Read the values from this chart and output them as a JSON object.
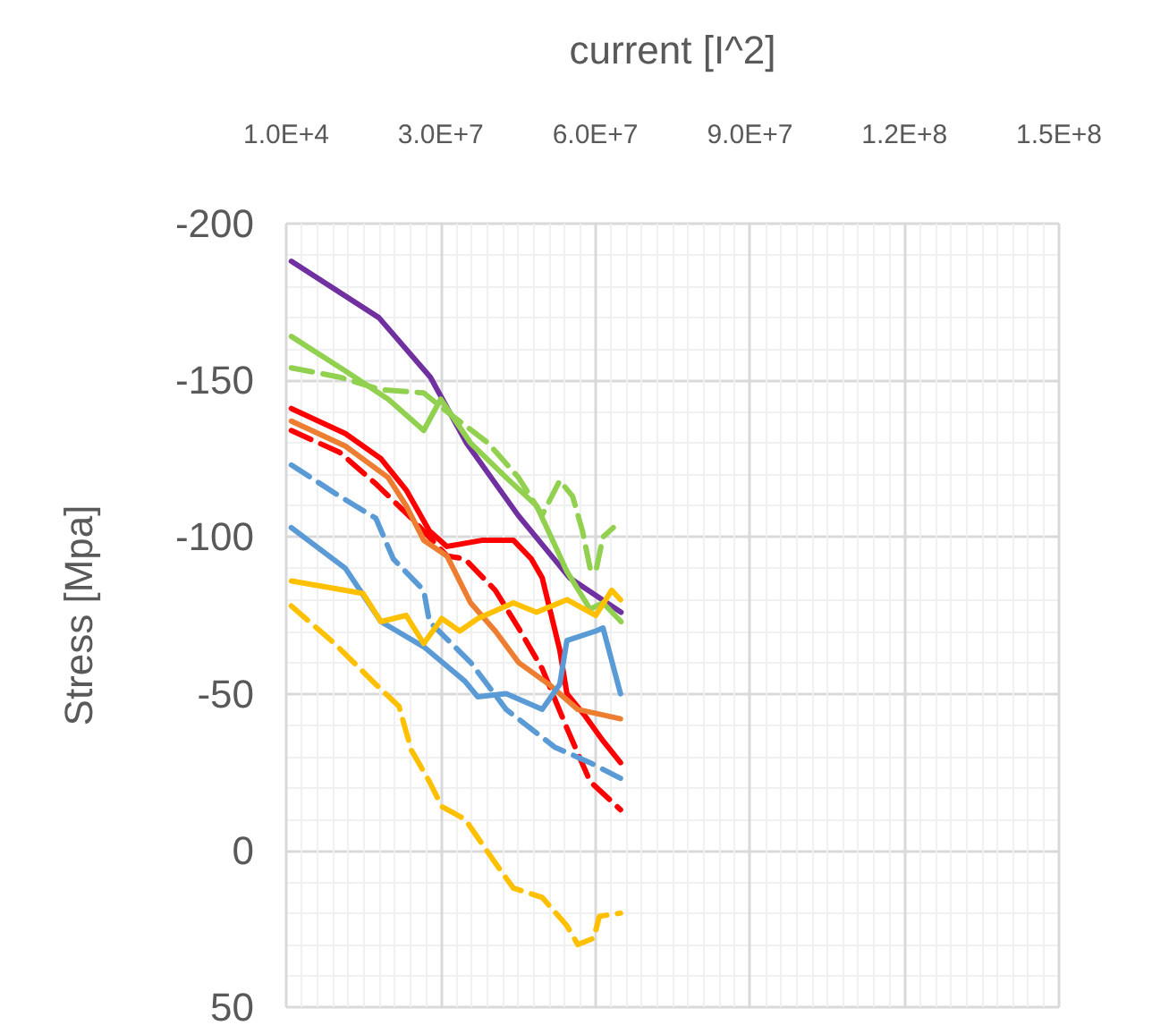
{
  "chart_data": {
    "type": "line",
    "xlabel": "current [I^2]",
    "ylabel": "Stress [Mpa]",
    "xlim": [
      10000,
      150010000
    ],
    "xticks": [
      {
        "value": 10000,
        "label": "1.0E+4"
      },
      {
        "value": 30010000,
        "label": "3.0E+7"
      },
      {
        "value": 60010000,
        "label": "6.0E+7"
      },
      {
        "value": 90010000,
        "label": "9.0E+7"
      },
      {
        "value": 120010000,
        "label": "1.2E+8"
      },
      {
        "value": 150010000,
        "label": "1.5E+8"
      }
    ],
    "ylim": [
      50,
      -200
    ],
    "yticks": [
      -200,
      -150,
      -100,
      -50,
      0,
      50
    ],
    "grid": true,
    "marker": "none",
    "series": [
      {
        "color": "#7030a0",
        "line_style": "solid",
        "x": [
          1000000,
          18000000,
          28000000,
          35000000,
          45000000,
          55000000,
          65000000
        ],
        "values": [
          -188,
          -170,
          -151,
          -130,
          -107,
          -87,
          -76
        ]
      },
      {
        "color": "#92d050",
        "line_style": "solid",
        "x": [
          1000000,
          11500000,
          19800000,
          26700000,
          30000000,
          35800000,
          42700000,
          48600000,
          52000000,
          54500000,
          59000000,
          61500000,
          65000000
        ],
        "values": [
          -164,
          -153,
          -144,
          -134,
          -144,
          -130,
          -119,
          -110,
          -98,
          -89,
          -77,
          -79,
          -73
        ]
      },
      {
        "color": "#92d050",
        "line_style": "dashed",
        "x": [
          1000000,
          10400000,
          18400000,
          26700000,
          31200000,
          39200000,
          45100000,
          49700000,
          53100000,
          55600000,
          57500000,
          59000000,
          60100000,
          61500000,
          63500000
        ],
        "values": [
          -154,
          -151,
          -147,
          -146,
          -140,
          -130,
          -119,
          -107,
          -118,
          -113,
          -102,
          -90,
          -89,
          -100,
          -103
        ]
      },
      {
        "color": "#ff0000",
        "line_style": "solid",
        "x": [
          1000000,
          11500000,
          18400000,
          23300000,
          27800000,
          31200000,
          38200000,
          44100000,
          47600000,
          49700000,
          53100000,
          54500000,
          58000000,
          61500000,
          64900000
        ],
        "values": [
          -141,
          -133,
          -125,
          -115,
          -102,
          -97,
          -99,
          -99,
          -93,
          -87,
          -64,
          -50,
          -43,
          -35,
          -28
        ]
      },
      {
        "color": "#ff0000",
        "line_style": "dashed",
        "x": [
          1000000,
          10400000,
          17400000,
          24300000,
          31200000,
          34700000,
          40600000,
          45100000,
          49700000,
          54500000,
          59000000,
          64900000
        ],
        "values": [
          -134,
          -127,
          -117,
          -106,
          -94,
          -93,
          -83,
          -71,
          -58,
          -39,
          -22,
          -13
        ]
      },
      {
        "color": "#ed7d31",
        "line_style": "solid",
        "x": [
          1000000,
          11500000,
          19800000,
          23300000,
          26700000,
          31200000,
          35800000,
          40600000,
          45100000,
          51000000,
          56600000,
          64900000
        ],
        "values": [
          -137,
          -129,
          -119,
          -110,
          -99,
          -94,
          -79,
          -70,
          -60,
          -53,
          -45,
          -42
        ]
      },
      {
        "color": "#5b9bd5",
        "line_style": "solid",
        "x": [
          1000000,
          11500000,
          18400000,
          26700000,
          34700000,
          37200000,
          42700000,
          49700000,
          53100000,
          54500000,
          60100000,
          61500000,
          64900000
        ],
        "values": [
          -103,
          -90,
          -73,
          -65,
          -54,
          -49,
          -50,
          -45,
          -53,
          -67,
          -70,
          -71,
          -50
        ]
      },
      {
        "color": "#5b9bd5",
        "line_style": "dashed",
        "x": [
          1000000,
          10400000,
          17400000,
          20800000,
          26700000,
          27800000,
          35800000,
          42700000,
          52100000,
          59000000,
          64900000
        ],
        "values": [
          -123,
          -113,
          -106,
          -93,
          -83,
          -73,
          -60,
          -45,
          -33,
          -28,
          -23
        ]
      },
      {
        "color": "#ffc000",
        "line_style": "solid",
        "x": [
          1000000,
          11500000,
          14900000,
          18400000,
          23300000,
          26700000,
          30200000,
          33700000,
          37200000,
          44100000,
          48600000,
          54500000,
          60100000,
          63200000,
          64900000
        ],
        "values": [
          -86,
          -83,
          -82,
          -73,
          -75,
          -66,
          -74,
          -70,
          -74,
          -79,
          -76,
          -80,
          -75,
          -83,
          -80
        ]
      },
      {
        "color": "#ffc000",
        "line_style": "dashed",
        "x": [
          1000000,
          9400000,
          17400000,
          21900000,
          24300000,
          27800000,
          30200000,
          34700000,
          40600000,
          44100000,
          49700000,
          54500000,
          56600000,
          59700000,
          60800000,
          64900000
        ],
        "values": [
          -78,
          -66,
          -53,
          -46,
          -32,
          -22,
          -14,
          -10,
          4,
          12,
          15,
          24,
          30,
          28,
          21,
          20
        ]
      }
    ]
  }
}
